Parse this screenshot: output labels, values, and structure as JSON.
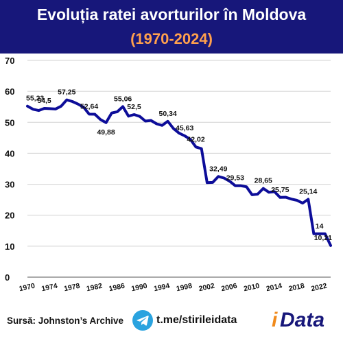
{
  "header": {
    "title": "Evoluția ratei avorturilor în Moldova",
    "subtitle": "(1970-2024)"
  },
  "colors": {
    "header_bg": "#17177a",
    "subtitle": "#ffa04d",
    "line": "#0d0d99",
    "grid": "#d0d0d0",
    "logo_accent": "#f08a1c",
    "telegram": "#2aa3df"
  },
  "footer": {
    "source": "Sursă: Johnston’s Archive",
    "telegram_icon": "telegram-icon",
    "telegram_link": "t.me/stirileidata",
    "logo_i": "i",
    "logo_rest": "Data",
    "logo_mark": "®"
  },
  "chart_data": {
    "type": "line",
    "title": "Evoluția ratei avorturilor în Moldova",
    "subtitle": "(1970-2024)",
    "xlabel": "",
    "ylabel": "",
    "xlim": [
      1970,
      2024
    ],
    "ylim": [
      0,
      70
    ],
    "x_ticks": [
      1970,
      1974,
      1978,
      1982,
      1986,
      1990,
      1994,
      1998,
      2002,
      2006,
      2010,
      2014,
      2018,
      2022
    ],
    "y_ticks": [
      0,
      10,
      20,
      30,
      40,
      50,
      60,
      70
    ],
    "grid": true,
    "legend": "none",
    "series": [
      {
        "x": [
          1970,
          1971,
          1972,
          1973,
          1974,
          1975,
          1976,
          1977,
          1978,
          1979,
          1980,
          1981,
          1982,
          1983,
          1984,
          1985,
          1986,
          1987,
          1988,
          1989,
          1990,
          1991,
          1992,
          1993,
          1994,
          1995,
          1996,
          1997,
          1998,
          1999,
          2000,
          2001,
          2002,
          2003,
          2004,
          2005,
          2006,
          2007,
          2008,
          2009,
          2010,
          2011,
          2012,
          2013,
          2014,
          2015,
          2016,
          2017,
          2018,
          2019,
          2020,
          2021,
          2022,
          2023,
          2024
        ],
        "values": [
          55.23,
          54.2,
          53.8,
          54.5,
          54.4,
          54.3,
          55.2,
          57.25,
          56.7,
          55.9,
          54.9,
          52.64,
          52.6,
          50.9,
          49.88,
          53.0,
          53.4,
          55.06,
          52.0,
          52.5,
          51.9,
          50.4,
          50.6,
          49.5,
          49.0,
          50.34,
          48.0,
          46.5,
          45.63,
          44.5,
          42.02,
          41.5,
          30.5,
          30.6,
          32.49,
          32.0,
          31.0,
          29.53,
          29.5,
          29.2,
          26.6,
          26.8,
          28.65,
          27.4,
          27.6,
          25.75,
          25.8,
          25.2,
          24.8,
          23.9,
          25.14,
          14.0,
          14.0,
          14.0,
          10.21
        ]
      }
    ],
    "data_labels": [
      {
        "x": 1970,
        "label": "55,23",
        "pos": "above"
      },
      {
        "x": 1973,
        "label": "54,5",
        "pos": "above"
      },
      {
        "x": 1977,
        "label": "57,25",
        "pos": "above"
      },
      {
        "x": 1981,
        "label": "52,64",
        "pos": "above"
      },
      {
        "x": 1984,
        "label": "49,88",
        "pos": "below"
      },
      {
        "x": 1987,
        "label": "55,06",
        "pos": "above"
      },
      {
        "x": 1989,
        "label": "52,5",
        "pos": "above"
      },
      {
        "x": 1995,
        "label": "50,34",
        "pos": "above"
      },
      {
        "x": 1998,
        "label": "45,63",
        "pos": "above"
      },
      {
        "x": 2000,
        "label": "42,02",
        "pos": "above"
      },
      {
        "x": 2004,
        "label": "32,49",
        "pos": "above"
      },
      {
        "x": 2007,
        "label": "29,53",
        "pos": "above"
      },
      {
        "x": 2012,
        "label": "28,65",
        "pos": "above"
      },
      {
        "x": 2015,
        "label": "25,75",
        "pos": "above"
      },
      {
        "x": 2020,
        "label": "25,14",
        "pos": "above"
      },
      {
        "x": 2022,
        "label": "14",
        "pos": "above"
      },
      {
        "x": 2024,
        "label": "10,21",
        "pos": "above"
      }
    ]
  }
}
